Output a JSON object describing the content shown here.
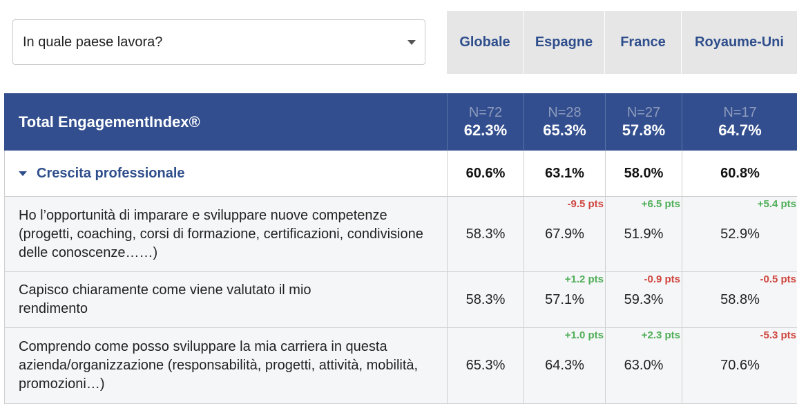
{
  "filter": {
    "label": "In quale paese lavora?"
  },
  "columns": [
    "Globale",
    "Espagne",
    "France",
    "Royaume-Uni"
  ],
  "total": {
    "title": "Total EngagementIndex®",
    "n": [
      "N=72",
      "N=28",
      "N=27",
      "N=17"
    ],
    "values": [
      "62.3%",
      "65.3%",
      "57.8%",
      "64.7%"
    ]
  },
  "section": {
    "title": "Crescita professionale",
    "values": [
      "60.6%",
      "63.1%",
      "58.0%",
      "60.8%"
    ]
  },
  "questions": [
    {
      "text": "Ho l’opportunità di imparare e sviluppare nuove competenze (progetti, coaching, corsi di formazione, certificazioni, condivisione delle conoscenze……)",
      "values": [
        "58.3%",
        "67.9%",
        "51.9%",
        "52.9%"
      ],
      "deltas": [
        "",
        "-9.5 pts",
        "+6.5 pts",
        "+5.4 pts"
      ]
    },
    {
      "text": "Capisco chiaramente come viene valutato il mio rendimento",
      "values": [
        "58.3%",
        "57.1%",
        "59.3%",
        "58.8%"
      ],
      "deltas": [
        "",
        "+1.2 pts",
        "-0.9 pts",
        "-0.5 pts"
      ]
    },
    {
      "text": "Comprendo come posso sviluppare la mia carriera in questa azienda/organizzazione (responsabilità, progetti, attività, mobilità, promozioni…)",
      "values": [
        "65.3%",
        "64.3%",
        "63.0%",
        "70.6%"
      ],
      "deltas": [
        "",
        "+1.0 pts",
        "+2.3 pts",
        "-5.3 pts"
      ]
    }
  ],
  "colors": {
    "header_bg": "#324e8e",
    "accent_text": "#2f4e8c",
    "tab_bg": "#e6e6e6",
    "positive": "#4fae58",
    "negative": "#d0453e"
  }
}
